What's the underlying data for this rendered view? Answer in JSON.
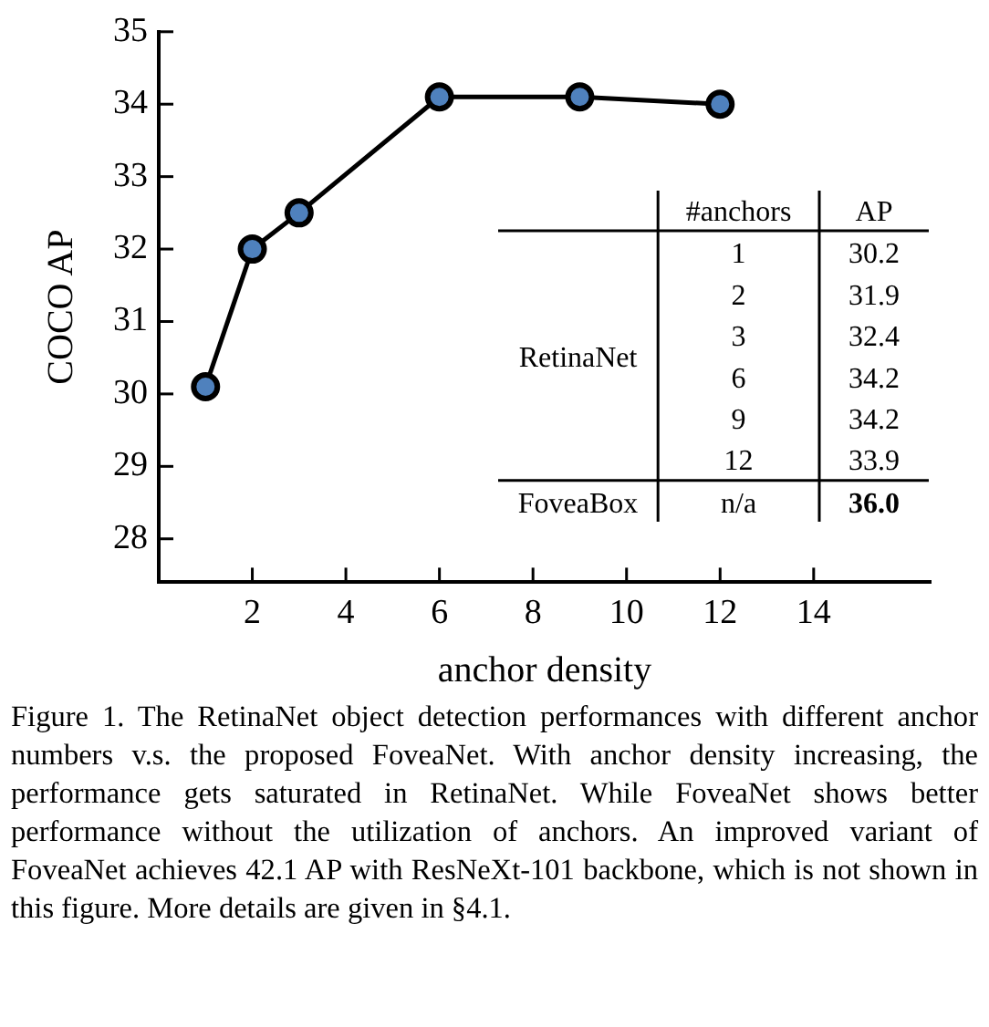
{
  "chart_data": {
    "type": "line",
    "xlabel": "anchor density",
    "ylabel": "COCO AP",
    "x": [
      1,
      2,
      3,
      6,
      9,
      12
    ],
    "series": [
      {
        "color": "#4f81bd",
        "values": [
          30.1,
          32.0,
          32.5,
          34.1,
          34.1,
          34.0
        ]
      }
    ],
    "xlim": [
      0,
      16.5
    ],
    "xticks": [
      2,
      4,
      6,
      8,
      10,
      12,
      14
    ],
    "ylim": [
      27.4,
      35
    ],
    "yticks": [
      28,
      29,
      30,
      31,
      32,
      33,
      34,
      35
    ],
    "grid": false,
    "legend": false,
    "marker": "circle",
    "line_style": "solid",
    "annotations": [
      "#anchors",
      "AP",
      "RetinaNet",
      "1",
      "30.2",
      "2",
      "31.9",
      "3",
      "32.4",
      "6",
      "34.2",
      "9",
      "34.2",
      "12",
      "33.9",
      "FoveaBox",
      "n/a",
      "36.0",
      "Figure 1. The RetinaNet object detection performances with different anchor numbers v.s. the proposed FoveaNet. With anchor density increasing, the performance gets saturated in RetinaNet. While FoveaNet shows better performance without the utilization of anchors. An improved variant of FoveaNet achieves 42.1 AP with ResNeXt-101 backbone, which is not shown in this figure. More details are given in §4.1."
    ]
  }
}
